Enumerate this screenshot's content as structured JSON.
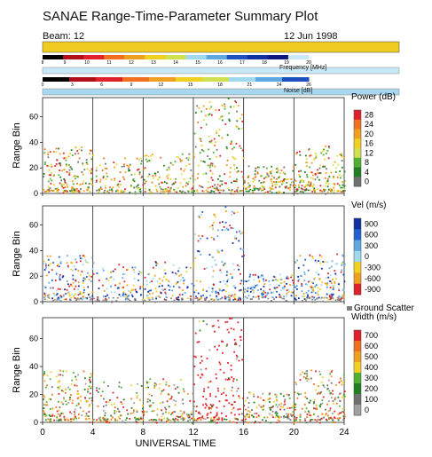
{
  "header": {
    "title": "SANAE Range-Time-Parameter Summary Plot",
    "beam": "Beam: 12",
    "date": "12 Jun 1998",
    "frequency_label": "Frequency [MHz]",
    "noise_label": "Noise [dB]",
    "frequency_ticks": [
      "8",
      "9",
      "10",
      "11",
      "12",
      "13",
      "14",
      "15",
      "16",
      "17",
      "18",
      "19",
      "20"
    ],
    "frequency_colors": [
      "#000000",
      "#b0101a",
      "#e0202a",
      "#f07020",
      "#f0a020",
      "#f0d020",
      "#d0e050",
      "#a0d8f0",
      "#60a8e0",
      "#2050c0",
      "#1030a0",
      "#101880",
      "#c8e8f8"
    ],
    "noise_ticks": [
      "0",
      "3",
      "6",
      "9",
      "12",
      "15",
      "18",
      "21",
      "24",
      "26"
    ],
    "noise_colors": [
      "#000000",
      "#b0101a",
      "#e0202a",
      "#f07020",
      "#f0a020",
      "#f0d020",
      "#d0e050",
      "#a0d8f0",
      "#60a8e0",
      "#2050c0"
    ]
  },
  "chart_data": [
    {
      "type": "heatmap",
      "name": "power",
      "ylabel": "Range Bin",
      "xlim": [
        0,
        24
      ],
      "ylim": [
        0,
        75
      ],
      "x_ticks": [
        0,
        4,
        8,
        12,
        16,
        20,
        24
      ],
      "y_ticks": [
        "0",
        "20",
        "40",
        "60"
      ],
      "colorbar": {
        "title": "Power (dB)",
        "labels": [
          "28",
          "24",
          "20",
          "16",
          "12",
          "8",
          "4",
          "0"
        ],
        "colors": [
          "#e0202a",
          "#f07020",
          "#f0a020",
          "#f0d020",
          "#d0e050",
          "#50b030",
          "#208020",
          "#707070"
        ]
      }
    },
    {
      "type": "heatmap",
      "name": "velocity",
      "ylabel": "Range Bin",
      "xlim": [
        0,
        24
      ],
      "ylim": [
        0,
        75
      ],
      "x_ticks": [
        0,
        4,
        8,
        12,
        16,
        20,
        24
      ],
      "y_ticks": [
        "0",
        "20",
        "40",
        "60"
      ],
      "colorbar": {
        "title": "Vel (m/s)",
        "labels": [
          "900",
          "600",
          "300",
          "0",
          "-300",
          "-600",
          "-900"
        ],
        "colors": [
          "#1030a0",
          "#2060d0",
          "#60a8e0",
          "#a0d8f0",
          "#f0d020",
          "#f0a020",
          "#e0202a"
        ]
      },
      "ground_scatter_label": "Ground Scatter"
    },
    {
      "type": "heatmap",
      "name": "width",
      "ylabel": "Range Bin",
      "xlabel": "UNIVERSAL TIME",
      "xlim": [
        0,
        24
      ],
      "ylim": [
        0,
        75
      ],
      "x_ticks": [
        0,
        4,
        8,
        12,
        16,
        20,
        24
      ],
      "y_ticks": [
        "0",
        "20",
        "40",
        "60"
      ],
      "x_tick_labels": [
        "0",
        "4",
        "8",
        "12",
        "16",
        "20",
        "24"
      ],
      "colorbar": {
        "title": "Width (m/s)",
        "labels": [
          "700",
          "600",
          "500",
          "400",
          "300",
          "200",
          "100",
          "0"
        ],
        "colors": [
          "#e0202a",
          "#f07020",
          "#f0a020",
          "#f0d020",
          "#50b030",
          "#208020",
          "#707070",
          "#a0a0a0"
        ]
      }
    }
  ]
}
